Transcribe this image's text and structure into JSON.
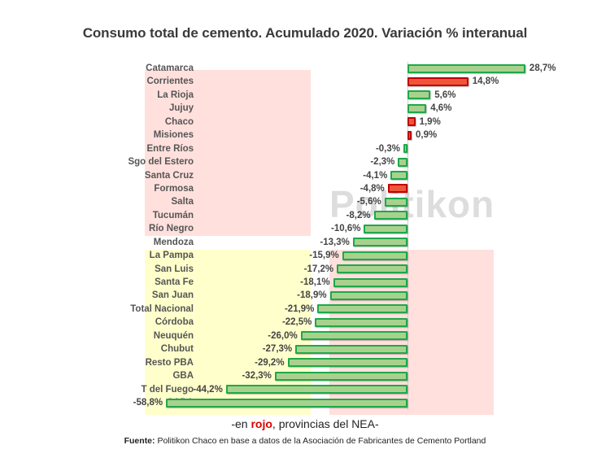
{
  "title": "Consumo total de cemento. Acumulado 2020. Variación % interanual",
  "watermark": "Politikon",
  "note": {
    "prefix": "-en ",
    "highlight": "rojo",
    "suffix": ", provincias del NEA-"
  },
  "source": {
    "label": "Fuente:",
    "text": " Politikon Chaco en base a datos de la Asociación de Fabricantes de Cemento Portland"
  },
  "colors": {
    "bar_green_fill": "#a9d18e",
    "bar_green_border": "#1fa84a",
    "bar_red_fill": "#f0553a",
    "bar_red_border": "#c00000",
    "bg_pink": "#ffe0dd",
    "bg_yellow": "#ffffcc"
  },
  "chart_data": {
    "type": "bar",
    "orientation": "horizontal",
    "title": "Consumo total de cemento. Acumulado 2020. Variación % interanual",
    "xlabel": "",
    "ylabel": "",
    "unit": "%",
    "grid": false,
    "legend": "none",
    "annotation": "-en rojo, provincias del NEA-",
    "categories": [
      "Catamarca",
      "Corrientes",
      "La Rioja",
      "Jujuy",
      "Chaco",
      "Misiones",
      "Entre Ríos",
      "Sgo del Estero",
      "Santa Cruz",
      "Formosa",
      "Salta",
      "Tucumán",
      "Río Negro",
      "Mendoza",
      "La Pampa",
      "San Luis",
      "Santa Fe",
      "San Juan",
      "Total Nacional",
      "Córdoba",
      "Neuquén",
      "Chubut",
      "Resto PBA",
      "GBA",
      "T del Fuego",
      "CABA"
    ],
    "values": [
      28.7,
      14.8,
      5.6,
      4.6,
      1.9,
      0.9,
      -0.3,
      -2.3,
      -4.1,
      -4.8,
      -5.6,
      -8.2,
      -10.6,
      -13.3,
      -15.9,
      -17.2,
      -18.1,
      -18.9,
      -21.9,
      -22.5,
      -26.0,
      -27.3,
      -29.2,
      -32.3,
      -44.2,
      -58.8
    ],
    "labels": [
      "28,7%",
      "14,8%",
      "5,6%",
      "4,6%",
      "1,9%",
      "0,9%",
      "-0,3%",
      "-2,3%",
      "-4,1%",
      "-4,8%",
      "-5,6%",
      "-8,2%",
      "-10,6%",
      "-13,3%",
      "-15,9%",
      "-17,2%",
      "-18,1%",
      "-18,9%",
      "-21,9%",
      "-22,5%",
      "-26,0%",
      "-27,3%",
      "-29,2%",
      "-32,3%",
      "-44,2%",
      "-58,8%"
    ],
    "nea": [
      false,
      true,
      false,
      false,
      true,
      true,
      false,
      false,
      false,
      true,
      false,
      false,
      false,
      false,
      false,
      false,
      false,
      false,
      false,
      false,
      false,
      false,
      false,
      false,
      false,
      false
    ],
    "xlim": [
      -58.8,
      28.7
    ]
  }
}
